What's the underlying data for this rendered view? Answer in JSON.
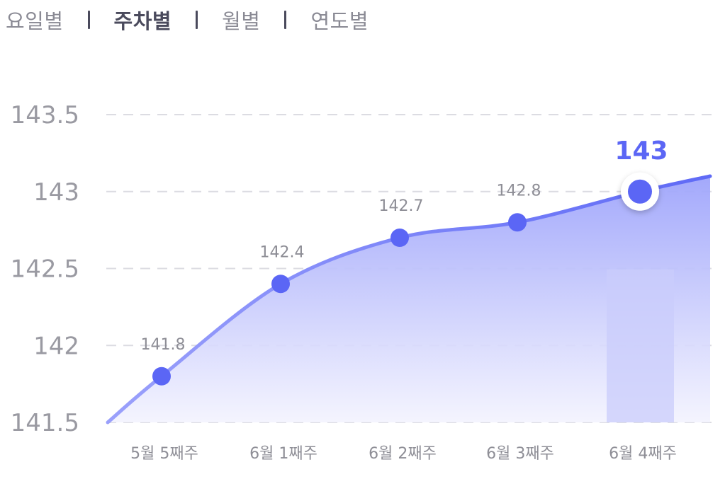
{
  "tabs": [
    {
      "label": "요일별",
      "active": false
    },
    {
      "label": "주차별",
      "active": true
    },
    {
      "label": "월별",
      "active": false
    },
    {
      "label": "연도별",
      "active": false
    }
  ],
  "chart_data": {
    "type": "area",
    "categories": [
      "5월 5째주",
      "6월 1째주",
      "6월 2째주",
      "6월 3째주",
      "6월 4째주"
    ],
    "values": [
      141.8,
      142.4,
      142.7,
      142.8,
      143
    ],
    "data_labels": [
      "141.8",
      "142.4",
      "142.7",
      "142.8",
      "143"
    ],
    "highlight_index": 4,
    "y_ticks": [
      "143.5",
      "143",
      "142.5",
      "142",
      "141.5"
    ],
    "ylim": [
      141.5,
      143.5
    ],
    "grid": true,
    "colors": {
      "line": "#6b74f7",
      "point": "#5b66f5",
      "highlight_label": "#5b66f5",
      "fill_top": "#9ea4fb",
      "fill_bottom": "#f3f3fe",
      "highlight_bar": "#c9ccfb"
    }
  }
}
